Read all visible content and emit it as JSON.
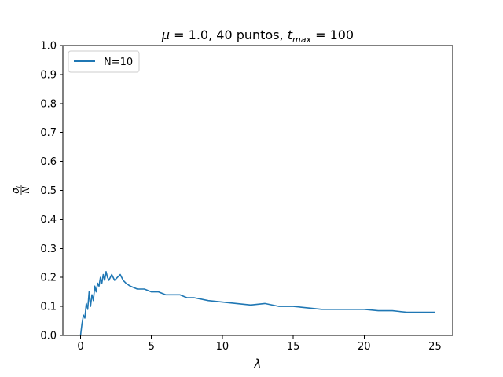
{
  "chart_data": {
    "type": "line",
    "title": {
      "greek": "μ",
      "eq1": " = 1.0, 40 puntos, ",
      "t": "t",
      "sub": "max",
      "eq2": " = 100"
    },
    "xlabel": "λ",
    "ylabel": {
      "num": "σ",
      "num_sub": "l",
      "den": "N"
    },
    "xlim": [
      -1.25,
      26.25
    ],
    "ylim": [
      0.0,
      1.0
    ],
    "xticks": [
      0,
      5,
      10,
      15,
      20,
      25
    ],
    "xtick_labels": [
      "0",
      "5",
      "10",
      "15",
      "20",
      "25"
    ],
    "yticks": [
      0.0,
      0.1,
      0.2,
      0.3,
      0.4,
      0.5,
      0.6,
      0.7,
      0.8,
      0.9,
      1.0
    ],
    "ytick_labels": [
      "0.0",
      "0.1",
      "0.2",
      "0.3",
      "0.4",
      "0.5",
      "0.6",
      "0.7",
      "0.8",
      "0.9",
      "1.0"
    ],
    "grid": false,
    "legend_position": "top-left",
    "series": [
      {
        "name": "N=10",
        "color": "#1f77b4",
        "x": [
          0,
          0.1,
          0.2,
          0.3,
          0.4,
          0.5,
          0.6,
          0.7,
          0.8,
          0.9,
          1.0,
          1.1,
          1.2,
          1.3,
          1.4,
          1.5,
          1.6,
          1.7,
          1.8,
          1.9,
          2.0,
          2.2,
          2.4,
          2.6,
          2.8,
          3.0,
          3.2,
          3.5,
          4.0,
          4.5,
          5.0,
          5.5,
          6.0,
          6.5,
          7.0,
          7.5,
          8.0,
          9.0,
          10.0,
          11.0,
          12.0,
          13.0,
          14.0,
          15.0,
          16.0,
          17.0,
          18.0,
          19.0,
          20.0,
          21.0,
          22.0,
          23.0,
          24.0,
          25.0
        ],
        "y": [
          0.0,
          0.04,
          0.07,
          0.06,
          0.11,
          0.09,
          0.15,
          0.1,
          0.14,
          0.12,
          0.17,
          0.15,
          0.18,
          0.17,
          0.2,
          0.18,
          0.21,
          0.19,
          0.22,
          0.2,
          0.19,
          0.21,
          0.19,
          0.2,
          0.21,
          0.19,
          0.18,
          0.17,
          0.16,
          0.16,
          0.15,
          0.15,
          0.14,
          0.14,
          0.14,
          0.13,
          0.13,
          0.12,
          0.115,
          0.11,
          0.105,
          0.11,
          0.1,
          0.1,
          0.095,
          0.09,
          0.09,
          0.09,
          0.09,
          0.085,
          0.085,
          0.08,
          0.08,
          0.08
        ]
      }
    ]
  }
}
